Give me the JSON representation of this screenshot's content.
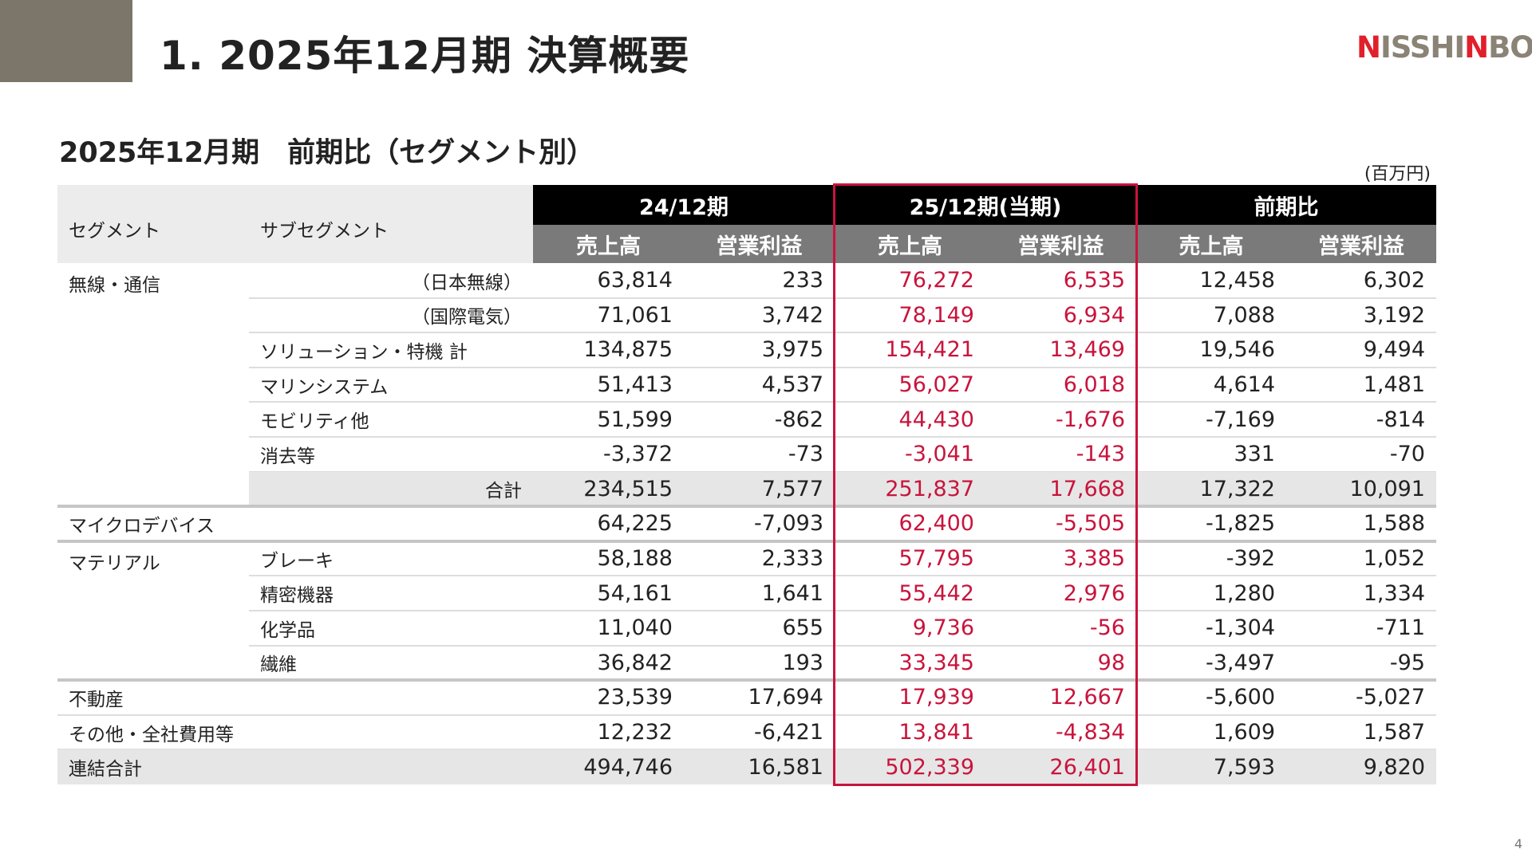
{
  "page": {
    "title": "1. 2025年12月期 決算概要",
    "logo_text": "NISSHINBO",
    "section_title": "2025年12月期　前期比（セグメント別）",
    "unit": "(百万円)",
    "page_number": "4"
  },
  "table": {
    "col_segment": "セグメント",
    "col_subsegment": "サブセグメント",
    "group_prev": "24/12期",
    "group_curr": "25/12期(当期)",
    "group_diff": "前期比",
    "sub_sales": "売上高",
    "sub_op": "営業利益",
    "rows": [
      {
        "segment": "無線・通信",
        "sub": "（日本無線）",
        "v": [
          "63,814",
          "233",
          "76,272",
          "6,535",
          "12,458",
          "6,302"
        ]
      },
      {
        "segment": "",
        "sub": "（国際電気）",
        "v": [
          "71,061",
          "3,742",
          "78,149",
          "6,934",
          "7,088",
          "3,192"
        ]
      },
      {
        "segment": "",
        "sub": "ソリューション・特機 計",
        "v": [
          "134,875",
          "3,975",
          "154,421",
          "13,469",
          "19,546",
          "9,494"
        ]
      },
      {
        "segment": "",
        "sub": "マリンシステム",
        "v": [
          "51,413",
          "4,537",
          "56,027",
          "6,018",
          "4,614",
          "1,481"
        ]
      },
      {
        "segment": "",
        "sub": "モビリティ他",
        "v": [
          "51,599",
          "-862",
          "44,430",
          "-1,676",
          "-7,169",
          "-814"
        ]
      },
      {
        "segment": "",
        "sub": "消去等",
        "v": [
          "-3,372",
          "-73",
          "-3,041",
          "-143",
          "331",
          "-70"
        ]
      },
      {
        "segment": "",
        "sub": "合計",
        "v": [
          "234,515",
          "7,577",
          "251,837",
          "17,668",
          "17,322",
          "10,091"
        ]
      },
      {
        "segment": "マイクロデバイス",
        "sub": "",
        "v": [
          "64,225",
          "-7,093",
          "62,400",
          "-5,505",
          "-1,825",
          "1,588"
        ]
      },
      {
        "segment": "マテリアル",
        "sub": "ブレーキ",
        "v": [
          "58,188",
          "2,333",
          "57,795",
          "3,385",
          "-392",
          "1,052"
        ]
      },
      {
        "segment": "",
        "sub": "精密機器",
        "v": [
          "54,161",
          "1,641",
          "55,442",
          "2,976",
          "1,280",
          "1,334"
        ]
      },
      {
        "segment": "",
        "sub": "化学品",
        "v": [
          "11,040",
          "655",
          "9,736",
          "-56",
          "-1,304",
          "-711"
        ]
      },
      {
        "segment": "",
        "sub": "繊維",
        "v": [
          "36,842",
          "193",
          "33,345",
          "98",
          "-3,497",
          "-95"
        ]
      },
      {
        "segment": "不動産",
        "sub": "",
        "v": [
          "23,539",
          "17,694",
          "17,939",
          "12,667",
          "-5,600",
          "-5,027"
        ]
      },
      {
        "segment": "その他・全社費用等",
        "sub": "",
        "v": [
          "12,232",
          "-6,421",
          "13,841",
          "-4,834",
          "1,609",
          "1,587"
        ]
      },
      {
        "segment": "連結合計",
        "sub": "",
        "v": [
          "494,746",
          "16,581",
          "502,339",
          "26,401",
          "7,593",
          "9,820"
        ]
      }
    ]
  },
  "colors": {
    "accent_block": "#7c766a",
    "current_period_red": "#c8143c",
    "header_black": "#000000",
    "header_gray": "#7a7a7a",
    "band_gray": "#e6e6e6"
  }
}
